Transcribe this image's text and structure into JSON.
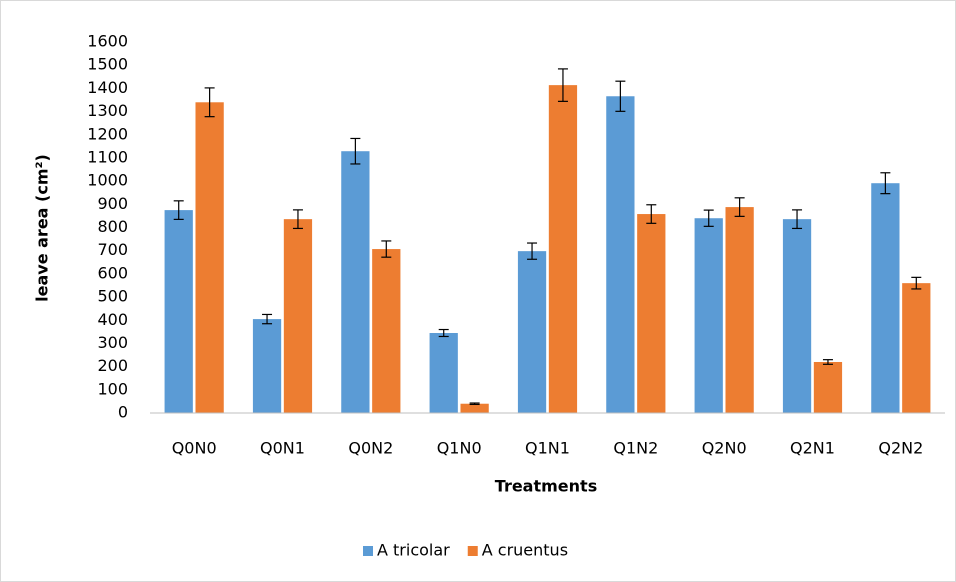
{
  "chart_data": {
    "type": "bar",
    "x_label": "Treatments",
    "y_label": "leave area (cm²)",
    "categories": [
      "Q0N0",
      "Q0N1",
      "Q0N2",
      "Q1N0",
      "Q1N1",
      "Q1N2",
      "Q2N0",
      "Q2N1",
      "Q2N2"
    ],
    "series": [
      {
        "name": "A tricolar",
        "color": "#5b9bd5",
        "values": [
          875,
          405,
          1129,
          345,
          698,
          1366,
          840,
          836,
          991
        ],
        "errors": [
          40,
          20,
          55,
          15,
          35,
          65,
          35,
          40,
          45
        ]
      },
      {
        "name": "A cruentus",
        "color": "#ed7d31",
        "values": [
          1340,
          836,
          707,
          40,
          1414,
          858,
          888,
          220,
          560
        ],
        "errors": [
          62,
          40,
          35,
          3,
          70,
          40,
          40,
          10,
          25
        ]
      }
    ],
    "ylim": [
      0,
      1600
    ],
    "yticks": [
      0,
      100,
      200,
      300,
      400,
      500,
      600,
      700,
      800,
      900,
      1000,
      1100,
      1200,
      1300,
      1400,
      1500,
      1600
    ],
    "grid": false,
    "legend": "bottom"
  }
}
